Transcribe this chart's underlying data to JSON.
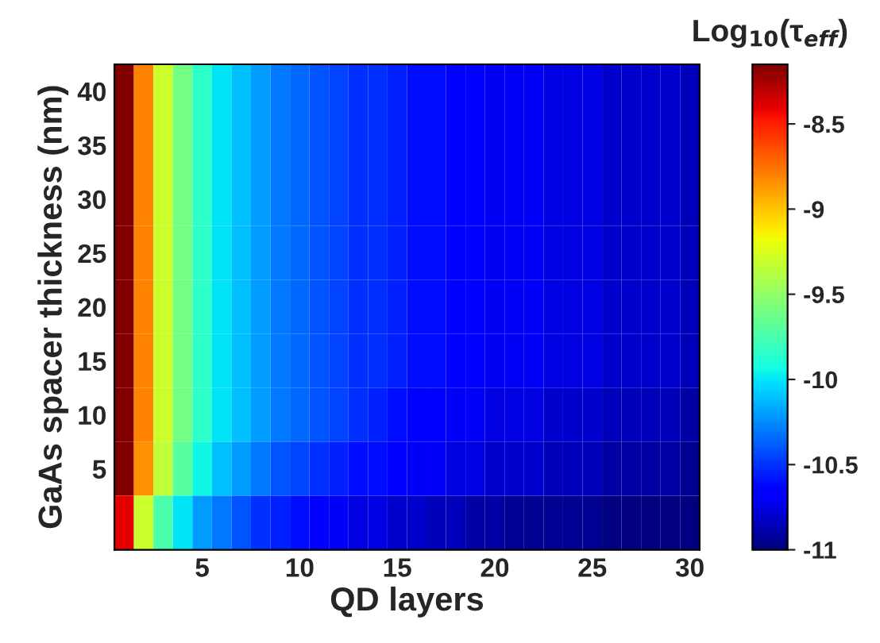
{
  "chart_data": {
    "type": "heatmap",
    "xlabel": "QD layers",
    "ylabel": "GaAs spacer thickness (nm)",
    "clabel": "Log$_{10}$(τ$_{eff}$)",
    "categories": [
      null,
      null,
      null,
      null,
      "5",
      null,
      null,
      null,
      null,
      "10",
      null,
      null,
      null,
      null,
      "15",
      null,
      null,
      null,
      null,
      "20",
      null,
      null,
      null,
      null,
      "25",
      null,
      null,
      null,
      null,
      "30"
    ],
    "y_categories": [
      "40",
      "35",
      "30",
      "25",
      "20",
      "15",
      "10",
      "5",
      null
    ],
    "cells": [
      [
        -8.1,
        -8.8,
        -9.3,
        -9.6,
        -9.85,
        -10.0,
        -10.1,
        -10.2,
        -10.3,
        -10.35,
        -10.4,
        -10.45,
        -10.5,
        -10.5,
        -10.55,
        -10.6,
        -10.6,
        -10.65,
        -10.65,
        -10.7,
        -10.7,
        -10.7,
        -10.75,
        -10.75,
        -10.75,
        -10.8,
        -10.8,
        -10.8,
        -10.8,
        -10.85
      ],
      [
        -8.1,
        -8.8,
        -9.3,
        -9.6,
        -9.85,
        -10.0,
        -10.1,
        -10.2,
        -10.3,
        -10.35,
        -10.4,
        -10.45,
        -10.5,
        -10.5,
        -10.55,
        -10.6,
        -10.6,
        -10.65,
        -10.65,
        -10.7,
        -10.7,
        -10.7,
        -10.75,
        -10.75,
        -10.75,
        -10.8,
        -10.8,
        -10.8,
        -10.8,
        -10.85
      ],
      [
        -8.1,
        -8.8,
        -9.3,
        -9.6,
        -9.85,
        -10.0,
        -10.1,
        -10.2,
        -10.3,
        -10.35,
        -10.4,
        -10.45,
        -10.5,
        -10.5,
        -10.55,
        -10.6,
        -10.6,
        -10.65,
        -10.65,
        -10.7,
        -10.7,
        -10.7,
        -10.75,
        -10.75,
        -10.75,
        -10.8,
        -10.8,
        -10.8,
        -10.8,
        -10.85
      ],
      [
        -8.1,
        -8.8,
        -9.3,
        -9.6,
        -9.85,
        -10.0,
        -10.1,
        -10.2,
        -10.3,
        -10.35,
        -10.4,
        -10.45,
        -10.5,
        -10.5,
        -10.55,
        -10.6,
        -10.6,
        -10.65,
        -10.65,
        -10.7,
        -10.7,
        -10.7,
        -10.75,
        -10.75,
        -10.75,
        -10.8,
        -10.8,
        -10.8,
        -10.8,
        -10.85
      ],
      [
        -8.1,
        -8.8,
        -9.3,
        -9.6,
        -9.85,
        -10.0,
        -10.1,
        -10.2,
        -10.3,
        -10.35,
        -10.4,
        -10.45,
        -10.5,
        -10.5,
        -10.55,
        -10.6,
        -10.6,
        -10.65,
        -10.65,
        -10.7,
        -10.7,
        -10.7,
        -10.75,
        -10.75,
        -10.75,
        -10.8,
        -10.8,
        -10.8,
        -10.8,
        -10.85
      ],
      [
        -8.1,
        -8.8,
        -9.3,
        -9.6,
        -9.85,
        -10.0,
        -10.1,
        -10.2,
        -10.3,
        -10.35,
        -10.4,
        -10.45,
        -10.5,
        -10.5,
        -10.55,
        -10.6,
        -10.6,
        -10.65,
        -10.65,
        -10.7,
        -10.7,
        -10.7,
        -10.75,
        -10.75,
        -10.75,
        -10.8,
        -10.8,
        -10.8,
        -10.8,
        -10.85
      ],
      [
        -8.1,
        -8.8,
        -9.3,
        -9.6,
        -9.85,
        -10.0,
        -10.1,
        -10.2,
        -10.3,
        -10.35,
        -10.4,
        -10.45,
        -10.5,
        -10.55,
        -10.6,
        -10.65,
        -10.65,
        -10.7,
        -10.7,
        -10.75,
        -10.75,
        -10.75,
        -10.8,
        -10.8,
        -10.8,
        -10.85,
        -10.85,
        -10.85,
        -10.85,
        -10.9
      ],
      [
        -8.15,
        -8.85,
        -9.35,
        -9.7,
        -9.95,
        -10.1,
        -10.2,
        -10.3,
        -10.4,
        -10.45,
        -10.5,
        -10.55,
        -10.6,
        -10.6,
        -10.65,
        -10.7,
        -10.7,
        -10.75,
        -10.75,
        -10.8,
        -10.8,
        -10.8,
        -10.85,
        -10.85,
        -10.85,
        -10.9,
        -10.9,
        -10.9,
        -10.9,
        -10.95
      ],
      [
        -8.4,
        -9.3,
        -9.75,
        -10.0,
        -10.2,
        -10.3,
        -10.4,
        -10.5,
        -10.55,
        -10.6,
        -10.65,
        -10.7,
        -10.75,
        -10.75,
        -10.8,
        -10.8,
        -10.85,
        -10.85,
        -10.9,
        -10.9,
        -10.95,
        -10.95,
        -10.95,
        -10.95,
        -10.95,
        -11.0,
        -11.0,
        -11.0,
        -11.0,
        -11.0
      ]
    ],
    "clim": [
      -11,
      -8.15
    ],
    "cticks": [
      -11,
      -10.5,
      -10,
      -9.5,
      -9,
      -8.5
    ]
  }
}
